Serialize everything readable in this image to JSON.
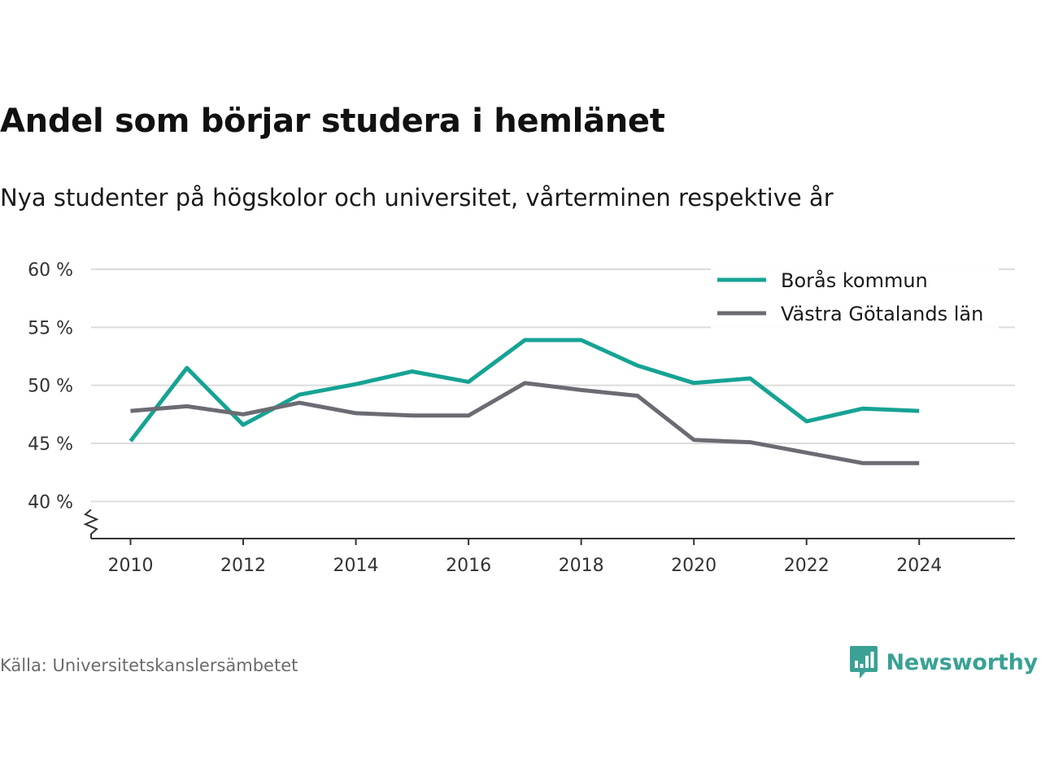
{
  "title": "Andel som börjar studera i hemlänet",
  "subtitle": "Nya studenter på högskolor och universitet, vårterminen respektive år",
  "source": "Källa: Universitetskanslersämbetet",
  "brand": {
    "name": "Newsworthy",
    "icon": "newsworthy-logo-icon",
    "color": "#3aa194"
  },
  "chart_data": {
    "type": "line",
    "title": "Andel som börjar studera i hemlänet",
    "subtitle": "Nya studenter på högskolor och universitet, vårterminen respektive år",
    "xlabel": "",
    "ylabel": "",
    "x": [
      2010,
      2011,
      2012,
      2013,
      2014,
      2015,
      2016,
      2017,
      2018,
      2019,
      2020,
      2021,
      2022,
      2023,
      2024
    ],
    "xticks": [
      2010,
      2012,
      2014,
      2016,
      2018,
      2020,
      2022,
      2024
    ],
    "xtick_labels": [
      "2010",
      "2012",
      "2014",
      "2016",
      "2018",
      "2020",
      "2022",
      "2024"
    ],
    "xlim": [
      2009.3,
      2025.7
    ],
    "yticks": [
      40,
      45,
      50,
      55,
      60
    ],
    "ytick_labels": [
      "40 %",
      "45 %",
      "50 %",
      "55 %",
      "60 %"
    ],
    "ylim": [
      36.8,
      60
    ],
    "y_axis_break": true,
    "grid": true,
    "legend_position": "top-right",
    "series": [
      {
        "name": "Borås kommun",
        "color": "#16a394",
        "values": [
          45.2,
          51.5,
          46.6,
          49.2,
          50.1,
          51.2,
          50.3,
          53.9,
          53.9,
          51.7,
          50.2,
          50.6,
          46.9,
          48.0,
          47.8
        ]
      },
      {
        "name": "Västra Götalands län",
        "color": "#6b6b73",
        "values": [
          47.8,
          48.2,
          47.5,
          48.5,
          47.6,
          47.4,
          47.4,
          50.2,
          49.6,
          49.1,
          45.3,
          45.1,
          44.2,
          43.3,
          43.3
        ]
      }
    ]
  }
}
